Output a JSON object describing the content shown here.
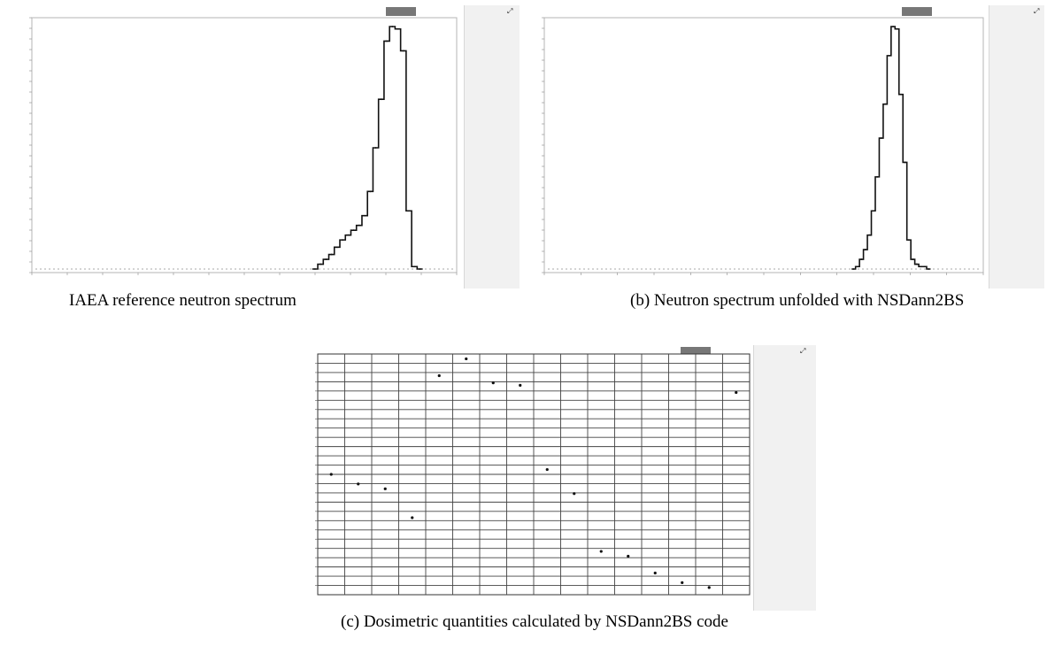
{
  "captions": {
    "a": "IAEA  reference neutron spectrum",
    "b": "(b) Neutron spectrum unfolded with NSDann2BS",
    "c": "(c)  Dosimetric quantities calculated by NSDann2BS code"
  },
  "chart_data": [
    {
      "type": "line",
      "step": true,
      "x_scale": "log",
      "y_scale": "linear",
      "x": [
        0.1,
        0.2,
        0.3,
        0.4,
        0.5,
        0.6,
        0.7,
        0.8,
        0.9,
        1.0,
        1.1,
        1.2,
        1.3,
        1.4,
        1.5,
        1.6,
        1.7,
        1.8,
        1.9,
        2.0
      ],
      "y_fraction_of_max": [
        0.0,
        0.02,
        0.04,
        0.06,
        0.09,
        0.12,
        0.14,
        0.16,
        0.18,
        0.22,
        0.32,
        0.5,
        0.7,
        0.94,
        1.0,
        0.99,
        0.9,
        0.24,
        0.01,
        0.0
      ],
      "grid": false
    },
    {
      "type": "line",
      "step": true,
      "x_scale": "log",
      "y_scale": "linear",
      "x": [
        0.1,
        0.2,
        0.3,
        0.4,
        0.5,
        0.6,
        0.7,
        0.8,
        0.9,
        1.0,
        1.1,
        1.2,
        1.3,
        1.4,
        1.5,
        1.6,
        1.7,
        1.8,
        1.9,
        2.0
      ],
      "y_fraction_of_max": [
        0.0,
        0.01,
        0.04,
        0.08,
        0.14,
        0.24,
        0.38,
        0.54,
        0.68,
        0.88,
        1.0,
        0.99,
        0.72,
        0.44,
        0.12,
        0.04,
        0.02,
        0.01,
        0.01,
        0.0
      ],
      "grid": false
    },
    {
      "type": "scatter",
      "x": [
        1,
        2,
        3,
        4,
        5,
        6,
        7,
        8,
        9,
        10,
        11,
        12,
        13,
        14,
        15,
        16
      ],
      "y_fraction_of_range": [
        0.5,
        0.46,
        0.44,
        0.32,
        0.91,
        0.98,
        0.88,
        0.87,
        0.52,
        0.42,
        0.18,
        0.16,
        0.09,
        0.05,
        0.03,
        0.84
      ],
      "grid": true
    }
  ]
}
